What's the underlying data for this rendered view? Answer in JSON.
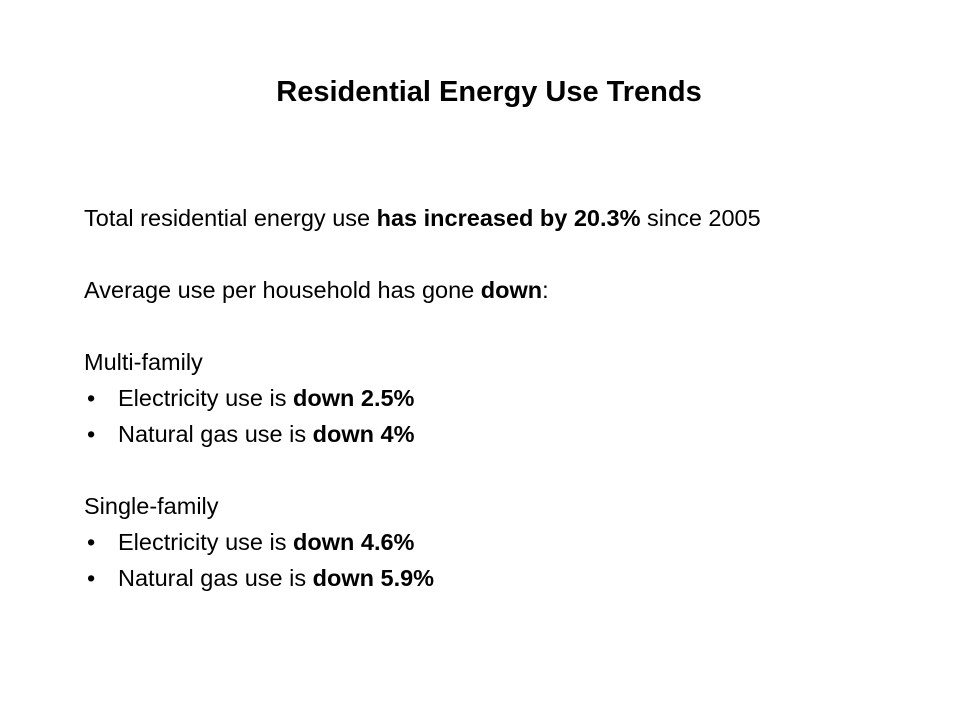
{
  "title": "Residential Energy Use Trends",
  "intro": {
    "line1": {
      "pre": "Total residential energy use ",
      "bold": "has increased by 20.3%",
      "post": " since 2005"
    },
    "line2": {
      "pre": "Average use per household has gone ",
      "bold": "down",
      "post": ":"
    }
  },
  "groups": [
    {
      "heading": "Multi-family",
      "bullet": "•",
      "items": [
        {
          "pre": "Electricity use is ",
          "bold": "down 2.5%"
        },
        {
          "pre": "Natural gas use is ",
          "bold": "down 4%"
        }
      ]
    },
    {
      "heading": "Single-family",
      "bullet": "•",
      "items": [
        {
          "pre": "Electricity use is ",
          "bold": "down 4.6%"
        },
        {
          "pre": "Natural gas use is ",
          "bold": "down 5.9%"
        }
      ]
    }
  ]
}
